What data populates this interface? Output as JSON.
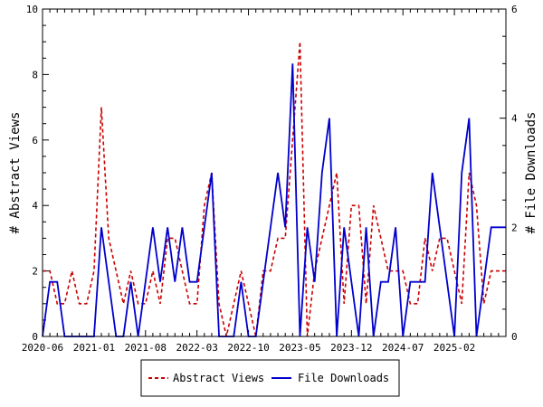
{
  "chart_data": {
    "type": "line",
    "title": "",
    "xlabel": "",
    "ylabel_left": "# Abstract Views",
    "ylabel_right": "# File Downloads",
    "ylim_left": [
      0,
      10
    ],
    "ylim_right": [
      0,
      6
    ],
    "yticks_left": [
      "0",
      "2",
      "4",
      "6",
      "8",
      "10"
    ],
    "yticks_right": [
      "0",
      "2",
      "4",
      "6"
    ],
    "xlim_months": [
      "2020-06",
      "2025-09"
    ],
    "xtick_labels": [
      "2020-06",
      "2021-01",
      "2021-08",
      "2022-03",
      "2022-10",
      "2023-05",
      "2023-12",
      "2024-07",
      "2025-02"
    ],
    "legend_position": "bottom-center",
    "months": [
      "2020-06",
      "2020-07",
      "2020-08",
      "2020-09",
      "2020-10",
      "2020-11",
      "2020-12",
      "2021-01",
      "2021-02",
      "2021-03",
      "2021-04",
      "2021-05",
      "2021-06",
      "2021-07",
      "2021-08",
      "2021-09",
      "2021-10",
      "2021-11",
      "2021-12",
      "2022-01",
      "2022-02",
      "2022-03",
      "2022-04",
      "2022-05",
      "2022-06",
      "2022-07",
      "2022-08",
      "2022-09",
      "2022-10",
      "2022-11",
      "2022-12",
      "2023-01",
      "2023-02",
      "2023-03",
      "2023-04",
      "2023-05",
      "2023-06",
      "2023-07",
      "2023-08",
      "2023-09",
      "2023-10",
      "2023-11",
      "2023-12",
      "2024-01",
      "2024-02",
      "2024-03",
      "2024-04",
      "2024-05",
      "2024-06",
      "2024-07",
      "2024-08",
      "2024-09",
      "2024-10",
      "2024-11",
      "2024-12",
      "2025-01",
      "2025-02",
      "2025-03",
      "2025-04",
      "2025-05",
      "2025-06",
      "2025-07",
      "2025-08",
      "2025-09"
    ],
    "series": [
      {
        "name": "Abstract Views",
        "axis": "left",
        "color": "#cc0000",
        "style": "dashed",
        "values": [
          2,
          2,
          1,
          1,
          2,
          1,
          1,
          2,
          7,
          3,
          2,
          1,
          2,
          1,
          1,
          2,
          1,
          3,
          3,
          2,
          1,
          1,
          4,
          5,
          1,
          0,
          1,
          2,
          1,
          0,
          2,
          2,
          3,
          3,
          6,
          9,
          0,
          2,
          3,
          4,
          5,
          1,
          4,
          4,
          1,
          4,
          3,
          2,
          2,
          2,
          1,
          1,
          3,
          2,
          3,
          3,
          2,
          1,
          5,
          4,
          1,
          2,
          2,
          2
        ]
      },
      {
        "name": "File Downloads",
        "axis": "right",
        "color": "#0000cc",
        "style": "solid",
        "values": [
          0,
          1,
          1,
          0,
          0,
          0,
          0,
          0,
          2,
          1,
          0,
          0,
          1,
          0,
          1,
          2,
          1,
          2,
          1,
          2,
          1,
          1,
          2,
          3,
          0,
          0,
          0,
          1,
          0,
          0,
          1,
          2,
          3,
          2,
          5,
          0,
          2,
          1,
          3,
          4,
          0,
          2,
          1,
          0,
          2,
          0,
          1,
          1,
          2,
          0,
          1,
          1,
          1,
          3,
          2,
          1,
          0,
          3,
          4,
          0,
          1,
          2,
          2,
          2
        ]
      }
    ]
  }
}
